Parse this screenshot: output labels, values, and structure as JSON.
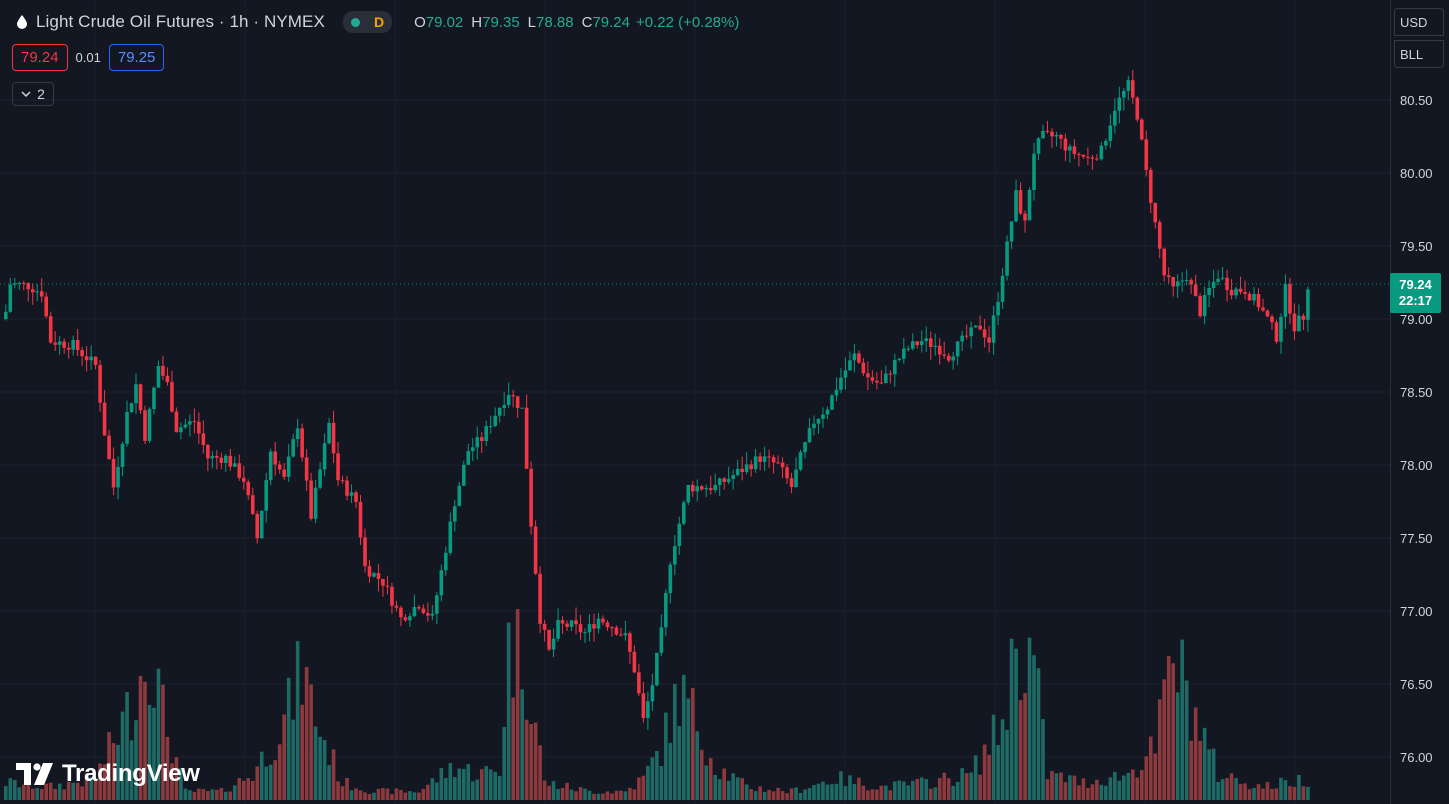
{
  "header": {
    "title": "Light Crude Oil Futures · 1h · NYMEX",
    "delay_badge": "D",
    "ohlc": {
      "o_label": "O",
      "o_value": "79.02",
      "h_label": "H",
      "h_value": "79.35",
      "l_label": "L",
      "l_value": "78.88",
      "c_label": "C",
      "c_value": "79.24"
    },
    "change": "+0.22 (+0.28%)"
  },
  "quote": {
    "bid": "79.24",
    "spread": "0.01",
    "ask": "79.25"
  },
  "indicators_toggle": {
    "count": "2"
  },
  "price_axis": {
    "currency": "USD",
    "unit": "BLL"
  },
  "last_price": {
    "price": "79.24",
    "countdown": "22:17"
  },
  "branding": {
    "logo_text": "TradingView"
  },
  "colors": {
    "up": "#089981",
    "down": "#f23645",
    "up_volume": "#1e6b66",
    "down_volume": "#8d3a3f",
    "background": "#131722"
  },
  "chart_data": {
    "type": "candlestick",
    "ylim": [
      75.85,
      80.75
    ],
    "y_ticks": [
      "80.50",
      "80.00",
      "79.50",
      "79.00",
      "78.50",
      "78.00",
      "77.50",
      "77.00",
      "76.50",
      "76.00"
    ],
    "last_price_line": 79.24,
    "close_path": [
      [
        0,
        79.05
      ],
      [
        1,
        79.24
      ],
      [
        5,
        79.23
      ],
      [
        8,
        79.18
      ],
      [
        10,
        78.85
      ],
      [
        15,
        78.82
      ],
      [
        20,
        78.68
      ],
      [
        22,
        78.22
      ],
      [
        24,
        77.85
      ],
      [
        27,
        78.35
      ],
      [
        29,
        78.55
      ],
      [
        31,
        78.2
      ],
      [
        34,
        78.68
      ],
      [
        36,
        78.55
      ],
      [
        38,
        78.25
      ],
      [
        42,
        78.3
      ],
      [
        45,
        78.05
      ],
      [
        49,
        78.05
      ],
      [
        53,
        77.9
      ],
      [
        56,
        77.5
      ],
      [
        59,
        78.1
      ],
      [
        62,
        77.9
      ],
      [
        65,
        78.28
      ],
      [
        68,
        77.65
      ],
      [
        72,
        78.28
      ],
      [
        74,
        77.9
      ],
      [
        78,
        77.75
      ],
      [
        80,
        77.3
      ],
      [
        84,
        77.2
      ],
      [
        88,
        76.95
      ],
      [
        92,
        77.05
      ],
      [
        95,
        76.95
      ],
      [
        100,
        77.75
      ],
      [
        103,
        78.1
      ],
      [
        106,
        78.18
      ],
      [
        109,
        78.35
      ],
      [
        112,
        78.5
      ],
      [
        115,
        78.38
      ],
      [
        117,
        77.6
      ],
      [
        119,
        76.95
      ],
      [
        121,
        76.72
      ],
      [
        123,
        76.9
      ],
      [
        126,
        76.9
      ],
      [
        129,
        76.85
      ],
      [
        132,
        76.95
      ],
      [
        135,
        76.9
      ],
      [
        138,
        76.82
      ],
      [
        140,
        76.6
      ],
      [
        142,
        76.25
      ],
      [
        144,
        76.5
      ],
      [
        146,
        76.85
      ],
      [
        148,
        77.35
      ],
      [
        150,
        77.6
      ],
      [
        152,
        77.85
      ],
      [
        158,
        77.85
      ],
      [
        163,
        77.95
      ],
      [
        168,
        78.05
      ],
      [
        172,
        78.0
      ],
      [
        175,
        77.85
      ],
      [
        177,
        78.05
      ],
      [
        180,
        78.3
      ],
      [
        183,
        78.4
      ],
      [
        186,
        78.6
      ],
      [
        189,
        78.75
      ],
      [
        192,
        78.6
      ],
      [
        195,
        78.55
      ],
      [
        198,
        78.7
      ],
      [
        201,
        78.8
      ],
      [
        204,
        78.85
      ],
      [
        207,
        78.82
      ],
      [
        210,
        78.75
      ],
      [
        214,
        78.88
      ],
      [
        217,
        78.95
      ],
      [
        219,
        78.85
      ],
      [
        221,
        79.15
      ],
      [
        223,
        79.5
      ],
      [
        225,
        79.85
      ],
      [
        227,
        79.65
      ],
      [
        229,
        80.15
      ],
      [
        231,
        80.25
      ],
      [
        234,
        80.25
      ],
      [
        237,
        80.15
      ],
      [
        241,
        80.1
      ],
      [
        244,
        80.15
      ],
      [
        247,
        80.45
      ],
      [
        250,
        80.6
      ],
      [
        252,
        80.4
      ],
      [
        254,
        80.0
      ],
      [
        256,
        79.65
      ],
      [
        258,
        79.3
      ],
      [
        260,
        79.2
      ],
      [
        263,
        79.3
      ],
      [
        266,
        79.05
      ],
      [
        268,
        79.2
      ],
      [
        270,
        79.3
      ],
      [
        273,
        79.2
      ],
      [
        276,
        79.2
      ],
      [
        279,
        79.1
      ],
      [
        281,
        79.0
      ],
      [
        283,
        78.88
      ],
      [
        285,
        79.2
      ],
      [
        287,
        78.95
      ],
      [
        289,
        79.02
      ],
      [
        290,
        79.24
      ]
    ],
    "volume_path": [
      [
        0,
        0.4
      ],
      [
        10,
        0.3
      ],
      [
        20,
        0.5
      ],
      [
        28,
        2.2
      ],
      [
        32,
        3.6
      ],
      [
        35,
        2.0
      ],
      [
        40,
        0.2
      ],
      [
        48,
        0.2
      ],
      [
        55,
        0.6
      ],
      [
        62,
        1.8
      ],
      [
        66,
        3.0
      ],
      [
        70,
        1.6
      ],
      [
        75,
        0.4
      ],
      [
        82,
        0.2
      ],
      [
        92,
        0.2
      ],
      [
        100,
        0.8
      ],
      [
        105,
        0.6
      ],
      [
        110,
        0.7
      ],
      [
        112,
        3.5
      ],
      [
        115,
        3.4
      ],
      [
        117,
        2.5
      ],
      [
        120,
        0.4
      ],
      [
        130,
        0.2
      ],
      [
        138,
        0.2
      ],
      [
        142,
        0.5
      ],
      [
        146,
        1.2
      ],
      [
        150,
        2.5
      ],
      [
        154,
        1.8
      ],
      [
        158,
        0.8
      ],
      [
        165,
        0.3
      ],
      [
        175,
        0.2
      ],
      [
        185,
        0.5
      ],
      [
        195,
        0.3
      ],
      [
        205,
        0.4
      ],
      [
        215,
        0.6
      ],
      [
        222,
        1.8
      ],
      [
        225,
        3.6
      ],
      [
        229,
        3.2
      ],
      [
        232,
        0.6
      ],
      [
        240,
        0.4
      ],
      [
        250,
        0.6
      ],
      [
        256,
        1.2
      ],
      [
        260,
        3.4
      ],
      [
        264,
        2.2
      ],
      [
        270,
        0.6
      ],
      [
        280,
        0.3
      ],
      [
        290,
        0.5
      ]
    ]
  }
}
